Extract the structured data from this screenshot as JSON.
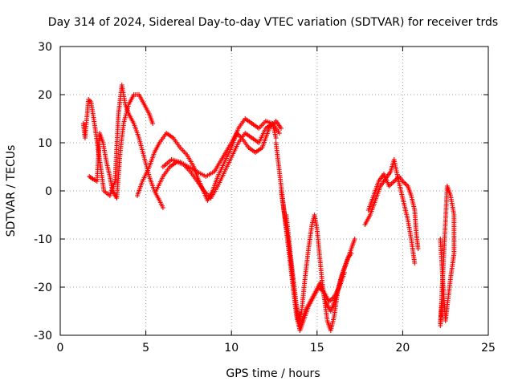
{
  "chart_data": {
    "type": "scatter",
    "title": "Day 314 of 2024, Sidereal Day-to-day VTEC variation (SDTVAR) for receiver trds",
    "xlabel": "GPS time / hours",
    "ylabel": "SDTVAR / TECUs",
    "xlim": [
      0,
      25
    ],
    "ylim": [
      -30,
      30
    ],
    "xticks": [
      0,
      5,
      10,
      15,
      20,
      25
    ],
    "yticks": [
      -30,
      -20,
      -10,
      0,
      10,
      20,
      30
    ],
    "grid": true,
    "marker": "+",
    "color": "#ff0000",
    "series": [
      {
        "name": "trace-1",
        "points": [
          [
            1.35,
            14
          ],
          [
            1.45,
            11
          ],
          [
            1.65,
            19
          ],
          [
            1.8,
            18.5
          ],
          [
            2.0,
            14
          ],
          [
            2.2,
            9
          ],
          [
            2.4,
            4
          ],
          [
            2.55,
            0
          ],
          [
            2.9,
            -1
          ],
          [
            3.2,
            2
          ],
          [
            3.4,
            16
          ],
          [
            3.6,
            22
          ],
          [
            3.8,
            18
          ],
          [
            4.0,
            16
          ],
          [
            4.3,
            14
          ],
          [
            4.6,
            11
          ],
          [
            4.9,
            7
          ],
          [
            5.2,
            3
          ],
          [
            5.5,
            0
          ],
          [
            5.8,
            -2
          ],
          [
            6.0,
            -3.5
          ]
        ]
      },
      {
        "name": "trace-2",
        "points": [
          [
            1.7,
            3
          ],
          [
            1.9,
            2.5
          ],
          [
            2.15,
            2
          ],
          [
            2.3,
            12
          ],
          [
            2.5,
            10
          ],
          [
            2.7,
            6
          ],
          [
            2.9,
            3
          ],
          [
            3.05,
            0
          ],
          [
            3.3,
            -1.5
          ],
          [
            3.5,
            8
          ],
          [
            3.7,
            14
          ],
          [
            4.0,
            18
          ],
          [
            4.3,
            20
          ],
          [
            4.6,
            20
          ],
          [
            4.9,
            18
          ],
          [
            5.2,
            16
          ],
          [
            5.4,
            14
          ]
        ]
      },
      {
        "name": "trace-3",
        "points": [
          [
            4.5,
            -1
          ],
          [
            4.8,
            2
          ],
          [
            5.2,
            5
          ],
          [
            5.5,
            8
          ],
          [
            5.8,
            10
          ],
          [
            6.2,
            12
          ],
          [
            6.6,
            11
          ],
          [
            7.0,
            9
          ],
          [
            7.4,
            7.5
          ],
          [
            7.8,
            5
          ],
          [
            8.0,
            3
          ],
          [
            8.3,
            0.5
          ],
          [
            8.6,
            -2
          ],
          [
            8.9,
            0
          ],
          [
            9.2,
            3
          ],
          [
            9.6,
            6
          ],
          [
            10.0,
            9
          ],
          [
            10.4,
            13
          ],
          [
            10.8,
            15
          ],
          [
            11.2,
            14
          ],
          [
            11.6,
            13
          ],
          [
            12.0,
            14.5
          ],
          [
            12.4,
            14
          ],
          [
            12.6,
            11
          ]
        ]
      },
      {
        "name": "trace-4",
        "points": [
          [
            5.6,
            0
          ],
          [
            6.0,
            3
          ],
          [
            6.4,
            5
          ],
          [
            6.8,
            6
          ],
          [
            7.2,
            5.5
          ],
          [
            7.6,
            4
          ],
          [
            8.0,
            2
          ],
          [
            8.4,
            0
          ],
          [
            8.8,
            -1.5
          ],
          [
            9.2,
            1
          ],
          [
            9.6,
            4
          ],
          [
            10.0,
            7
          ],
          [
            10.4,
            10
          ],
          [
            10.8,
            12
          ],
          [
            11.2,
            11
          ],
          [
            11.6,
            10
          ],
          [
            12.0,
            13
          ],
          [
            12.4,
            14
          ],
          [
            12.8,
            12
          ]
        ]
      },
      {
        "name": "trace-5",
        "points": [
          [
            6.0,
            5
          ],
          [
            6.5,
            6.5
          ],
          [
            7.0,
            6
          ],
          [
            7.5,
            5
          ],
          [
            8.0,
            4
          ],
          [
            8.5,
            3
          ],
          [
            9.0,
            4
          ],
          [
            9.5,
            7
          ],
          [
            10.0,
            10
          ],
          [
            10.3,
            12
          ],
          [
            10.6,
            11
          ],
          [
            11.0,
            9
          ],
          [
            11.4,
            8
          ],
          [
            11.8,
            9
          ],
          [
            12.2,
            13
          ],
          [
            12.6,
            14.5
          ],
          [
            12.9,
            13
          ]
        ]
      },
      {
        "name": "trace-6",
        "points": [
          [
            12.6,
            10
          ],
          [
            12.8,
            4
          ],
          [
            13.0,
            -2
          ],
          [
            13.2,
            -8
          ],
          [
            13.4,
            -14
          ],
          [
            13.6,
            -20
          ],
          [
            13.8,
            -26
          ],
          [
            14.0,
            -29
          ],
          [
            14.2,
            -27
          ],
          [
            14.5,
            -24
          ],
          [
            14.8,
            -22
          ],
          [
            15.1,
            -20
          ],
          [
            15.4,
            -21
          ],
          [
            15.7,
            -23
          ],
          [
            16.0,
            -22
          ],
          [
            16.3,
            -20
          ],
          [
            16.6,
            -17
          ]
        ]
      },
      {
        "name": "trace-7",
        "points": [
          [
            12.9,
            0
          ],
          [
            13.1,
            -5
          ],
          [
            13.3,
            -10
          ],
          [
            13.5,
            -16
          ],
          [
            13.7,
            -22
          ],
          [
            13.9,
            -27
          ],
          [
            14.1,
            -25
          ],
          [
            14.3,
            -18
          ],
          [
            14.5,
            -12
          ],
          [
            14.7,
            -7
          ],
          [
            14.85,
            -5
          ],
          [
            15.0,
            -8
          ],
          [
            15.3,
            -19
          ],
          [
            15.6,
            -27
          ],
          [
            15.8,
            -29
          ],
          [
            16.0,
            -26
          ],
          [
            16.2,
            -21
          ],
          [
            16.5,
            -17
          ],
          [
            16.8,
            -14
          ],
          [
            17.0,
            -13
          ]
        ]
      },
      {
        "name": "trace-8",
        "points": [
          [
            13.2,
            -5
          ],
          [
            13.5,
            -15
          ],
          [
            13.8,
            -24
          ],
          [
            14.0,
            -28
          ],
          [
            14.3,
            -25
          ],
          [
            14.6,
            -23
          ],
          [
            14.9,
            -21
          ],
          [
            15.2,
            -19
          ],
          [
            15.5,
            -23
          ],
          [
            15.8,
            -25
          ],
          [
            16.1,
            -22
          ],
          [
            16.4,
            -18
          ],
          [
            16.7,
            -15
          ],
          [
            17.0,
            -12
          ],
          [
            17.2,
            -10
          ]
        ]
      },
      {
        "name": "trace-9",
        "points": [
          [
            17.8,
            -7
          ],
          [
            18.1,
            -5
          ],
          [
            18.4,
            -2
          ],
          [
            18.7,
            1
          ],
          [
            19.0,
            2.5
          ],
          [
            19.3,
            4
          ],
          [
            19.5,
            6.5
          ],
          [
            19.7,
            3
          ],
          [
            19.9,
            0
          ],
          [
            20.1,
            -3
          ],
          [
            20.3,
            -6
          ],
          [
            20.5,
            -10
          ],
          [
            20.7,
            -15
          ]
        ]
      },
      {
        "name": "trace-10",
        "points": [
          [
            18.0,
            -4
          ],
          [
            18.3,
            -1
          ],
          [
            18.6,
            2
          ],
          [
            18.9,
            3.5
          ],
          [
            19.2,
            1
          ],
          [
            19.5,
            2
          ],
          [
            19.8,
            3
          ],
          [
            20.0,
            2
          ],
          [
            20.3,
            1
          ],
          [
            20.5,
            -1
          ],
          [
            20.7,
            -4
          ],
          [
            20.8,
            -9
          ],
          [
            20.9,
            -12
          ]
        ]
      },
      {
        "name": "trace-11",
        "points": [
          [
            22.2,
            -10
          ],
          [
            22.3,
            -16
          ],
          [
            22.4,
            -22
          ],
          [
            22.5,
            -27
          ],
          [
            22.6,
            -24
          ],
          [
            22.8,
            -18
          ],
          [
            23.0,
            -13
          ],
          [
            23.0,
            -5
          ],
          [
            22.8,
            -1
          ],
          [
            22.6,
            1
          ],
          [
            22.2,
            -28
          ],
          [
            22.3,
            -23
          ]
        ]
      }
    ]
  }
}
